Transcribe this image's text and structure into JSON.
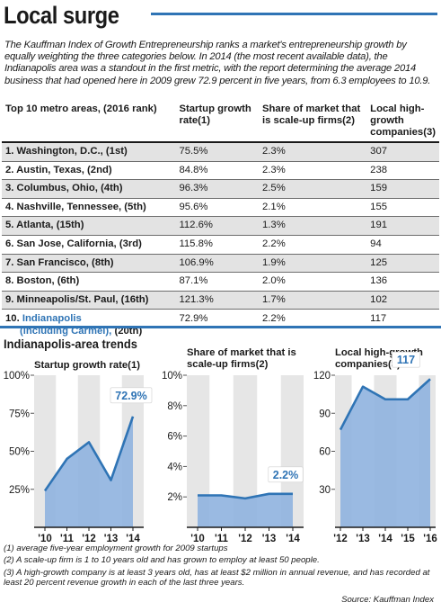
{
  "headline": "Local surge",
  "intro": "The Kauffman Index of Growth Entrepreneurship ranks a market's entrepreneurship growth by equally weighting the three categories below. In 2014 (the most recent available data), the Indianapolis area was a standout in the first metric, with the report determining the average 2014 business that had opened here in 2009 grew 72.9 percent in five years, from 6.3 employees to 10.9.",
  "table": {
    "headers": [
      "Top 10 metro areas, (2016 rank)",
      "Startup growth rate(1)",
      "Share of market that is scale-up firms(2)",
      "Local high-growth companies(3)"
    ],
    "rows": [
      {
        "area": "1. Washington, D.C., (1st)",
        "startup": "75.5%",
        "share": "2.3%",
        "companies": "307"
      },
      {
        "area": "2. Austin, Texas, (2nd)",
        "startup": "84.8%",
        "share": "2.3%",
        "companies": "238"
      },
      {
        "area": "3. Columbus, Ohio, (4th)",
        "startup": "96.3%",
        "share": "2.5%",
        "companies": "159"
      },
      {
        "area": "4. Nashville, Tennessee, (5th)",
        "startup": "95.6%",
        "share": "2.1%",
        "companies": "155"
      },
      {
        "area": "5. Atlanta, (15th)",
        "startup": "112.6%",
        "share": "1.3%",
        "companies": "191"
      },
      {
        "area": "6. San Jose, California, (3rd)",
        "startup": "115.8%",
        "share": "2.2%",
        "companies": "94"
      },
      {
        "area": "7. San Francisco, (8th)",
        "startup": "106.9%",
        "share": "1.9%",
        "companies": "125"
      },
      {
        "area": "8. Boston, (6th)",
        "startup": "87.1%",
        "share": "2.0%",
        "companies": "136"
      },
      {
        "area": "9. Minneapolis/St. Paul, (16th)",
        "startup": "121.3%",
        "share": "1.7%",
        "companies": "102"
      }
    ],
    "last_row": {
      "prefix": "10. ",
      "area_line1": "Indianapolis",
      "area_line2": "(including Carmel),",
      "rank": " (20th)",
      "startup": "72.9%",
      "share": "2.2%",
      "companies": "117"
    }
  },
  "trends_title": "Indianapolis-area trends",
  "chart_data": [
    {
      "type": "area",
      "title": "Startup growth rate(1)",
      "x": [
        "'10",
        "'11",
        "'12",
        "'13",
        "'14"
      ],
      "values": [
        24,
        45,
        56,
        31,
        72.9
      ],
      "ylim": [
        0,
        100
      ],
      "yticks": [
        25,
        50,
        75,
        100
      ],
      "ytick_labels": [
        "25%",
        "50%",
        "75%",
        "100%"
      ],
      "callout": "72.9%",
      "callout_index": 4
    },
    {
      "type": "area",
      "title": "Share of market that is scale-up firms(2)",
      "x": [
        "'10",
        "'11",
        "'12",
        "'13",
        "'14"
      ],
      "values": [
        2.1,
        2.1,
        1.9,
        2.2,
        2.2
      ],
      "ylim": [
        0,
        10
      ],
      "yticks": [
        2,
        4,
        6,
        8,
        10
      ],
      "ytick_labels": [
        "2%",
        "4%",
        "6%",
        "8%",
        "10%"
      ],
      "callout": "2.2%",
      "callout_index": 4
    },
    {
      "type": "area",
      "title": "Local high-growth companies(3)",
      "x": [
        "'12",
        "'13",
        "'14",
        "'15",
        "'16"
      ],
      "values": [
        77,
        111,
        101,
        101,
        117
      ],
      "ylim": [
        0,
        120
      ],
      "yticks": [
        30,
        60,
        90,
        120
      ],
      "ytick_labels": [
        "30",
        "60",
        "90",
        "120"
      ],
      "callout": "117",
      "callout_index": 3
    }
  ],
  "footnotes": [
    "(1) average five-year employment growth for 2009 startups",
    "(2) A scale-up firm is 1 to 10 years old and has grown to employ at least 50 people.",
    "(3) A high-growth company is at least 3 years old, has at least $2 million in annual revenue, and has recorded at least 20 percent revenue growth in each of the last three years."
  ],
  "source": "Source: Kauffman Index",
  "colors": {
    "accent": "#2f74b5",
    "area_fill": "#8fb3df",
    "line": "#2f74b5",
    "panel": "#e6e6e6",
    "band": "#ffffff",
    "shade_row": "#e3e3e3"
  }
}
